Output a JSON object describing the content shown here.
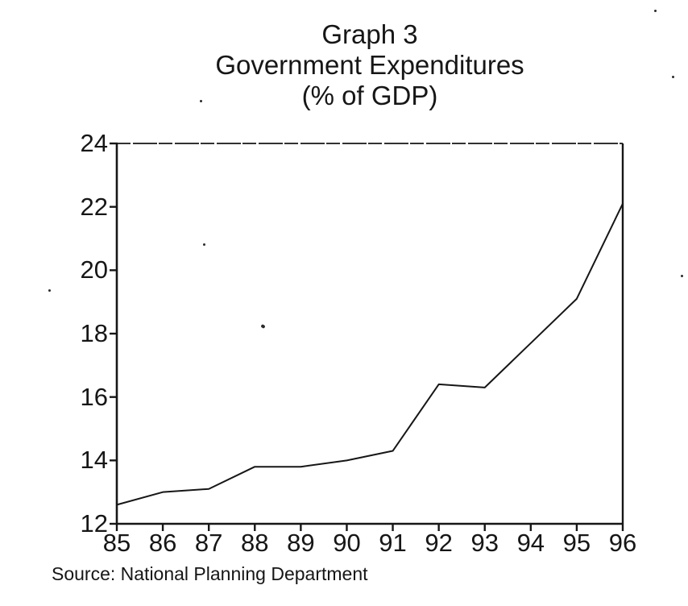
{
  "page": {
    "background_color": "#ffffff",
    "ink_color": "#161616"
  },
  "title": {
    "line1": "Graph 3",
    "line2": "Government Expenditures",
    "line3": "(% of GDP)"
  },
  "source": "Source: National Planning Department",
  "chart_data": {
    "type": "line",
    "title": "Graph 3 - Government Expenditures (% of GDP)",
    "categories": [
      "85",
      "86",
      "87",
      "88",
      "89",
      "90",
      "91",
      "92",
      "93",
      "94",
      "95",
      "96"
    ],
    "series": [
      {
        "name": "Government expenditures (% of GDP)",
        "values": [
          12.6,
          13.0,
          13.1,
          13.8,
          13.8,
          14.0,
          14.3,
          16.4,
          16.3,
          17.7,
          19.1,
          22.1
        ]
      }
    ],
    "xlabel": "",
    "ylabel": "",
    "ylim": [
      12,
      24
    ],
    "yticks": [
      12,
      14,
      16,
      18,
      20,
      22,
      24
    ],
    "grid": false,
    "legend": "none",
    "line_color": "#161616",
    "source": "Source: National Planning Department"
  }
}
